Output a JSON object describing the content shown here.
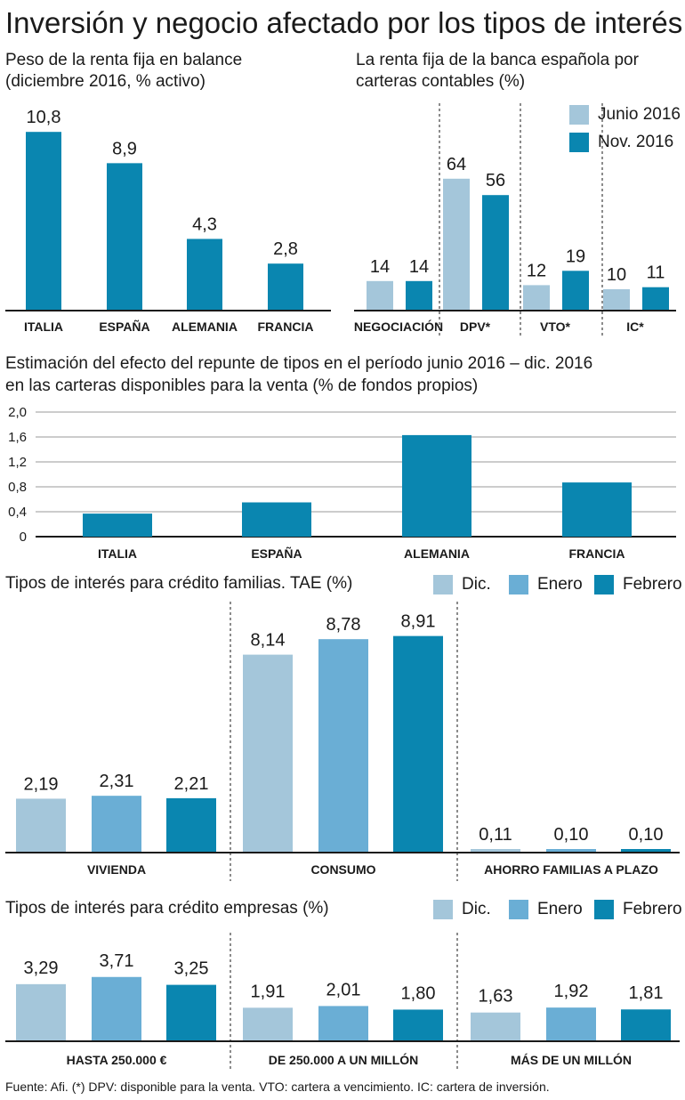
{
  "title": "Inversión y negocio afectado por los tipos de interés",
  "colors": {
    "light": "#a4c6da",
    "medium": "#6aaed5",
    "dark": "#0a86b0"
  },
  "panels": {
    "renta_fija_balance": {
      "title_line1": "Peso de la renta fija en balance",
      "title_line2": "(diciembre 2016, % activo)"
    },
    "renta_fija_carteras": {
      "title_line1": "La renta fija de la banca española por",
      "title_line2": "carteras contables (%)",
      "legend": [
        "Junio 2016",
        "Nov. 2016"
      ]
    },
    "efecto_repunte": {
      "title_line1": "Estimación del efecto del repunte de tipos en el período junio 2016 – dic. 2016",
      "title_line2": "en las carteras disponibles para la venta (% de fondos propios)"
    },
    "credito_familias": {
      "title": "Tipos de interés para crédito familias. TAE (%)",
      "legend": [
        "Dic.",
        "Enero",
        "Febrero"
      ]
    },
    "credito_empresas": {
      "title": "Tipos de interés para crédito empresas (%)",
      "legend": [
        "Dic.",
        "Enero",
        "Febrero"
      ]
    }
  },
  "source": "Fuente: Afi. (*) DPV: disponible para la venta. VTO: cartera a vencimiento. IC: cartera de inversión.",
  "chart_data": [
    {
      "type": "bar",
      "title": "Peso de la renta fija en balance (diciembre 2016, % activo)",
      "categories": [
        "ITALIA",
        "ESPAÑA",
        "ALEMANIA",
        "FRANCIA"
      ],
      "values": [
        10.8,
        8.9,
        4.3,
        2.8
      ],
      "value_labels": [
        "10,8",
        "8,9",
        "4,3",
        "2,8"
      ]
    },
    {
      "type": "bar",
      "title": "La renta fija de la banca española por carteras contables (%)",
      "categories": [
        "NEGOCIACIÓN",
        "DPV*",
        "VTO*",
        "IC*"
      ],
      "series": [
        {
          "name": "Junio 2016",
          "values": [
            14,
            64,
            12,
            10
          ],
          "labels": [
            "14",
            "64",
            "12",
            "10"
          ]
        },
        {
          "name": "Nov. 2016",
          "values": [
            14,
            56,
            19,
            11
          ],
          "labels": [
            "14",
            "56",
            "19",
            "11"
          ]
        }
      ]
    },
    {
      "type": "bar",
      "title": "Estimación del efecto del repunte de tipos en el período junio 2016 – dic. 2016 en las carteras disponibles para la venta (% de fondos propios)",
      "categories": [
        "ITALIA",
        "ESPAÑA",
        "ALEMANIA",
        "FRANCIA"
      ],
      "values": [
        0.37,
        0.55,
        1.63,
        0.87
      ],
      "ylim": [
        0,
        2.0
      ],
      "yticks": [
        0,
        0.4,
        0.8,
        1.2,
        1.6,
        2.0
      ],
      "ytick_labels": [
        "0",
        "0,4",
        "0,8",
        "1,2",
        "1,6",
        "2,0"
      ],
      "grid": true
    },
    {
      "type": "bar",
      "title": "Tipos de interés para crédito familias. TAE (%)",
      "categories": [
        "VIVIENDA",
        "CONSUMO",
        "AHORRO FAMILIAS A PLAZO"
      ],
      "series": [
        {
          "name": "Dic.",
          "values": [
            2.19,
            8.14,
            0.11
          ],
          "labels": [
            "2,19",
            "8,14",
            "0,11"
          ]
        },
        {
          "name": "Enero",
          "values": [
            2.31,
            8.78,
            0.1
          ],
          "labels": [
            "2,31",
            "8,78",
            "0,10"
          ]
        },
        {
          "name": "Febrero",
          "values": [
            2.21,
            8.91,
            0.1
          ],
          "labels": [
            "2,21",
            "8,91",
            "0,10"
          ]
        }
      ]
    },
    {
      "type": "bar",
      "title": "Tipos de interés para crédito empresas (%)",
      "categories": [
        "HASTA 250.000 €",
        "DE 250.000 A UN MILLÓN",
        "MÁS DE UN MILLÓN"
      ],
      "series": [
        {
          "name": "Dic.",
          "values": [
            3.29,
            1.91,
            1.63
          ],
          "labels": [
            "3,29",
            "1,91",
            "1,63"
          ]
        },
        {
          "name": "Enero",
          "values": [
            3.71,
            2.01,
            1.92
          ],
          "labels": [
            "3,71",
            "2,01",
            "1,92"
          ]
        },
        {
          "name": "Febrero",
          "values": [
            3.25,
            1.8,
            1.81
          ],
          "labels": [
            "3,25",
            "1,80",
            "1,81"
          ]
        }
      ]
    }
  ]
}
